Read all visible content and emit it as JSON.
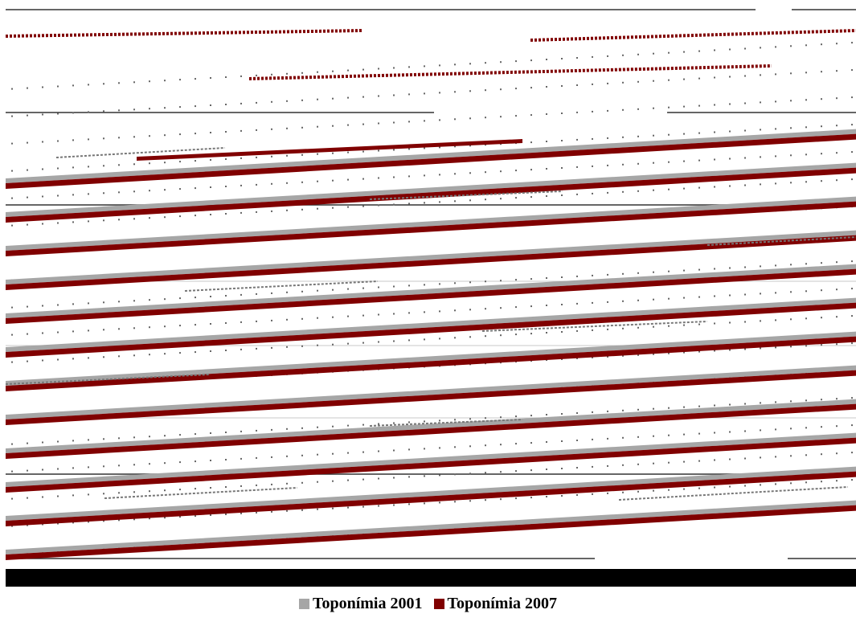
{
  "colors": {
    "series_2001": "#a6a6a6",
    "series_2007": "#800000",
    "band": "#000000",
    "background": "#ffffff"
  },
  "chart_data": {
    "type": "bar",
    "title": "",
    "xlabel": "",
    "ylabel": "",
    "grid": true,
    "legend": "bottom-center",
    "series": [
      {
        "name": "Toponímia 2001",
        "color": "#a6a6a6"
      },
      {
        "name": "Toponímia 2007",
        "color": "#800000"
      }
    ]
  },
  "legend": {
    "items": [
      {
        "label": "Toponímia 2001",
        "color": "#a6a6a6"
      },
      {
        "label": "Toponímia 2007",
        "color": "#800000"
      }
    ]
  }
}
